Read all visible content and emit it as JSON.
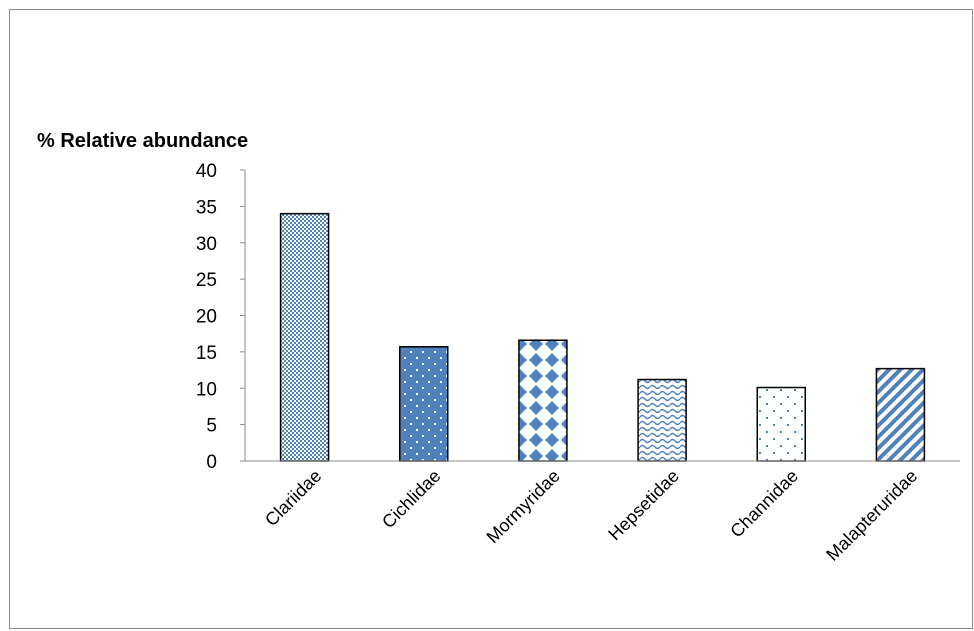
{
  "chart_data": {
    "type": "bar",
    "title": "",
    "ylabel": "% Relative abundance",
    "xlabel": "",
    "categories": [
      "Clariidae",
      "Cichlidae",
      "Mormyridae",
      "Hepsetidae",
      "Channidae",
      "Malapteruridae"
    ],
    "values": [
      34,
      15.7,
      16.6,
      11.2,
      10.1,
      12.7
    ],
    "ylim": [
      0,
      40
    ],
    "yticks": [
      "0",
      "5",
      "10",
      "15",
      "20",
      "25",
      "30",
      "35",
      "40"
    ],
    "grid": false,
    "legend": "none",
    "colors": {
      "primary": "#4f81bd",
      "outline": "#000000",
      "axis": "#8c8c8c"
    },
    "bar_patterns": [
      "fine-checker",
      "dots-on-blue",
      "diamonds",
      "waves",
      "sparse-dots",
      "diagonal-stripes"
    ]
  }
}
